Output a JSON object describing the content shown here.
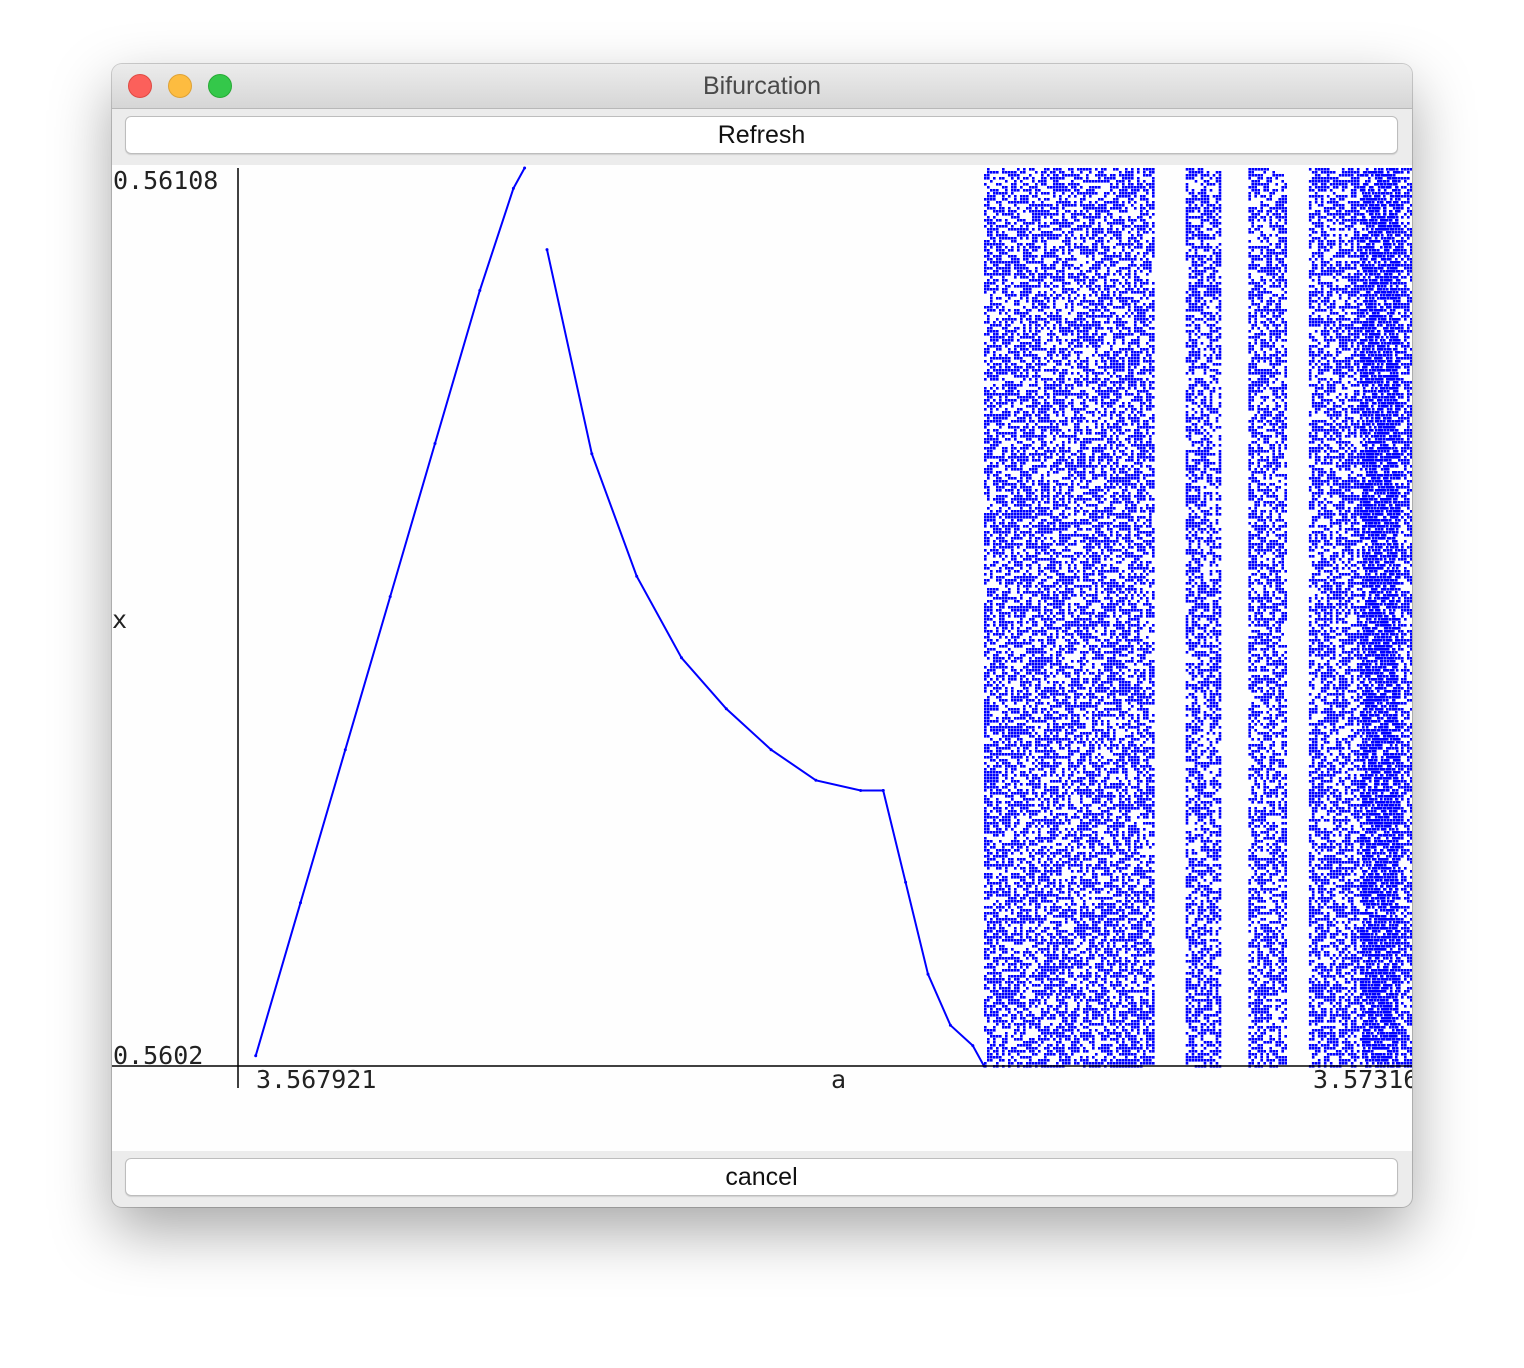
{
  "window": {
    "title": "Bifurcation"
  },
  "toolbar": {
    "refresh_label": "Refresh"
  },
  "footer": {
    "cancel_label": "cancel"
  },
  "chart_data": {
    "type": "scatter",
    "xlabel": "a",
    "ylabel": "x",
    "x_tick_labels": [
      "3.567921",
      "3.57316"
    ],
    "y_tick_labels": [
      "0.56108",
      "0.5602"
    ],
    "xlim": [
      3.567921,
      3.57316
    ],
    "ylim": [
      0.5602,
      0.56108
    ],
    "color": "#0000ff",
    "series": [
      {
        "x": [
          3.568,
          3.5682,
          3.5684,
          3.5686,
          3.5688,
          3.569,
          3.56915,
          3.5692
        ],
        "y": [
          0.56021,
          0.56036,
          0.56051,
          0.56066,
          0.56081,
          0.56096,
          0.56106,
          0.56108
        ]
      },
      {
        "x": [
          3.5693,
          3.5695,
          3.5697,
          3.5699,
          3.5701,
          3.5703,
          3.5705,
          3.5707,
          3.5708
        ],
        "y": [
          0.561,
          0.5608,
          0.56068,
          0.5606,
          0.56055,
          0.56051,
          0.56048,
          0.56047,
          0.56047
        ]
      },
      {
        "x": [
          3.5708,
          3.5709,
          3.571,
          3.5711,
          3.5712,
          3.57125
        ],
        "y": [
          0.56047,
          0.56038,
          0.56029,
          0.56024,
          0.56022,
          0.5602
        ]
      }
    ],
    "chaotic_bands": [
      [
        3.57125,
        3.572
      ],
      [
        3.57215,
        3.5723
      ],
      [
        3.57243,
        3.5726
      ],
      [
        3.5727,
        3.5731
      ],
      [
        3.57316,
        3.57316
      ]
    ]
  }
}
